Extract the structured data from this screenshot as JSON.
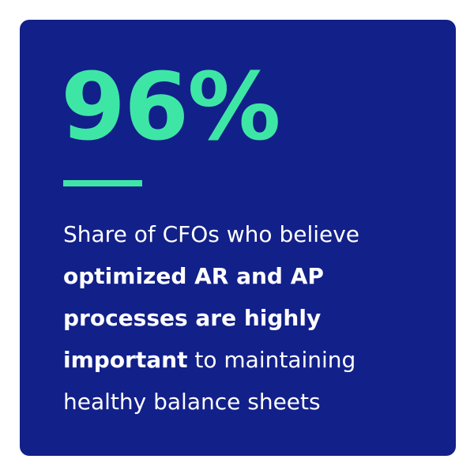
{
  "stat": "96%",
  "description": {
    "lines": [
      [
        {
          "text": "Share of CFOs who believe",
          "bold": false
        }
      ],
      [
        {
          "text": "optimized AR and AP",
          "bold": true
        }
      ],
      [
        {
          "text": "processes are highly",
          "bold": true
        }
      ],
      [
        {
          "text": "important",
          "bold": true
        },
        {
          "text": " to maintaining",
          "bold": false
        }
      ],
      [
        {
          "text": "healthy balance sheets",
          "bold": false
        }
      ]
    ]
  }
}
